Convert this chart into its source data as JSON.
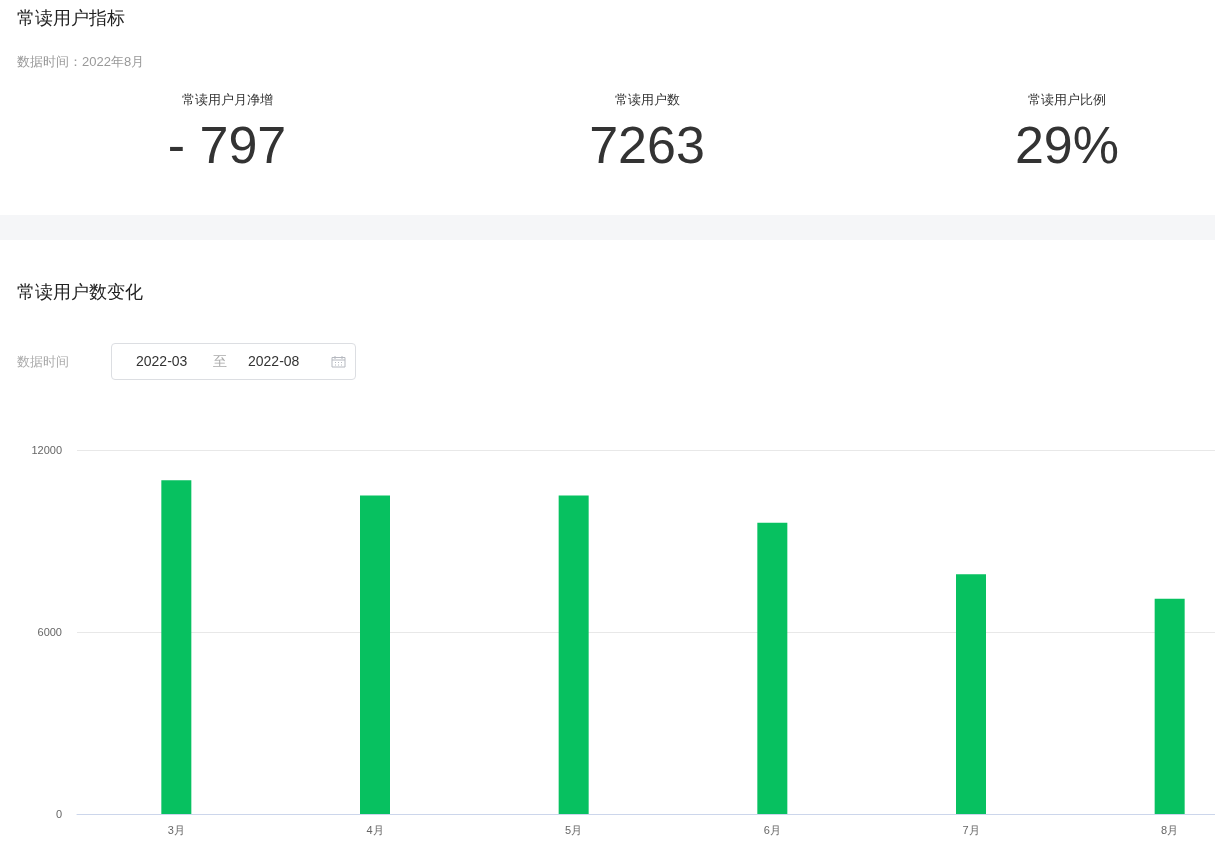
{
  "chart_data": [
    {
      "type": "other",
      "title": "常读用户指标",
      "subtitle": "数据时间：2022年8月",
      "categories": [
        "常读用户月净增",
        "常读用户数",
        "常读用户比例"
      ],
      "value_labels": [
        "- 797",
        "7263",
        "29%"
      ]
    },
    {
      "type": "bar",
      "title": "常读用户数变化",
      "annotations": [
        "数据时间",
        "2022-03",
        "至",
        "2022-08"
      ],
      "categories": [
        "3月",
        "4月",
        "5月",
        "6月",
        "7月",
        "8月"
      ],
      "values": [
        11000,
        10500,
        10500,
        9600,
        7900,
        7100
      ],
      "color": "#07c160",
      "ylim": [
        0,
        12000
      ],
      "yticks": [
        0,
        6000,
        12000
      ],
      "grid": "y"
    }
  ]
}
